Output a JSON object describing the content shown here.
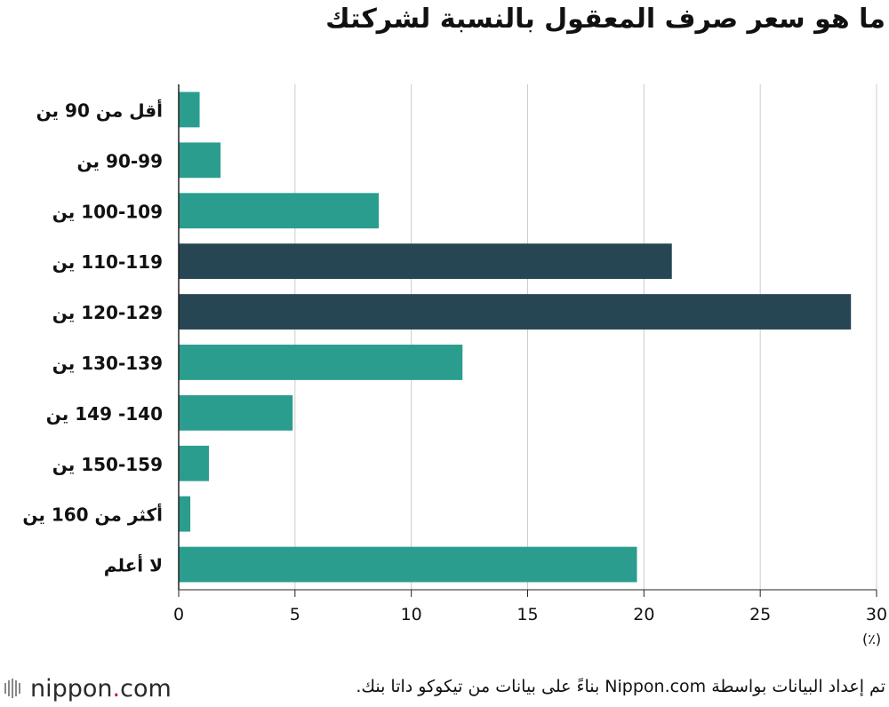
{
  "title": "ما هو سعر صرف المعقول بالنسبة لشركتك",
  "unit_label": "(٪)",
  "source": "تم إعداد البيانات بواسطة Nippon.com بناءً على بيانات من  تيكوكو داتا بنك.",
  "brand": {
    "name": "nippon",
    "dot": ".",
    "suffix": "com",
    "icon": "bars-logo-icon"
  },
  "colors": {
    "default_bar": "#2a9d8f",
    "highlight_bar": "#264653",
    "grid": "#cccccc",
    "axis": "#222222"
  },
  "chart_data": {
    "type": "bar",
    "orientation": "horizontal",
    "categories": [
      "أقل من 90 ين",
      "90-99 ين",
      "100-109 ين",
      "110-119 ين",
      "120-129 ين",
      "130-139 ين",
      "140- 149 ين",
      "150-159 ين",
      "أكثر من 160 ين",
      "لا أعلم"
    ],
    "values": [
      0.9,
      1.8,
      8.6,
      21.2,
      28.9,
      12.2,
      4.9,
      1.3,
      0.5,
      19.7
    ],
    "highlighted": [
      false,
      false,
      false,
      true,
      true,
      false,
      false,
      false,
      false,
      false
    ],
    "xlim": [
      0,
      30
    ],
    "xticks": [
      0,
      5,
      10,
      15,
      20,
      25,
      30
    ],
    "grid": true,
    "legend": "none"
  }
}
